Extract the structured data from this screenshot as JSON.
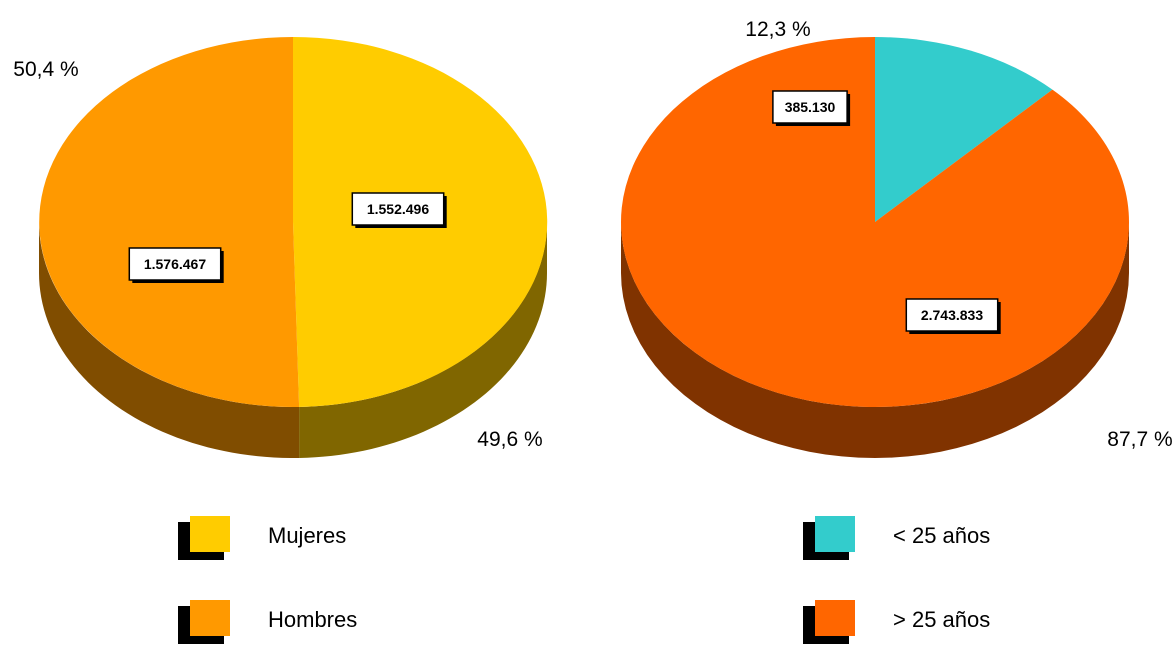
{
  "chart_data": [
    {
      "type": "pie",
      "labels": [
        "Mujeres",
        "Hombres"
      ],
      "values": [
        1552496,
        1576467
      ],
      "value_labels": [
        "1.552.496",
        "1.576.467"
      ],
      "percent_labels": [
        "49,6 %",
        "50,4 %"
      ],
      "colors": [
        "#FFCC00",
        "#FF9900"
      ],
      "side_colors": [
        "#806600",
        "#804D00"
      ],
      "legend": [
        {
          "label": "Mujeres",
          "color": "#FFCC00"
        },
        {
          "label": "Hombres",
          "color": "#FF9900"
        }
      ],
      "legend_placement": "bottom"
    },
    {
      "type": "pie",
      "labels": [
        "< 25 años",
        "> 25 años"
      ],
      "values": [
        385130,
        2743833
      ],
      "value_labels": [
        "385.130",
        "2.743.833"
      ],
      "percent_labels": [
        "12,3 %",
        "87,7 %"
      ],
      "colors": [
        "#33CCCC",
        "#FF6600"
      ],
      "side_colors": [
        "#1A6666",
        "#803300"
      ],
      "legend": [
        {
          "label": "< 25 años",
          "color": "#33CCCC"
        },
        {
          "label": "> 25 años",
          "color": "#FF6600"
        }
      ],
      "legend_placement": "bottom"
    }
  ]
}
